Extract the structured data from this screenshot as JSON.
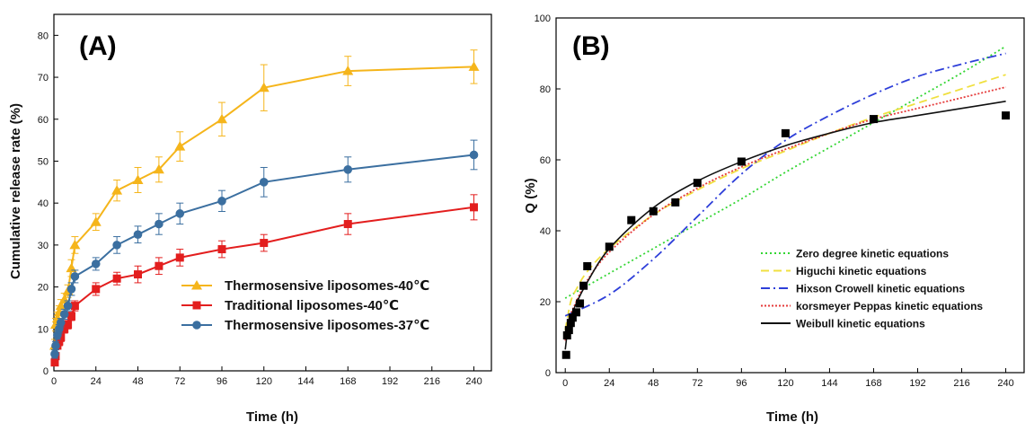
{
  "chart_data": [
    {
      "type": "line",
      "panel_label": "(A)",
      "xlabel": "Time (h)",
      "ylabel": "Cumulative release rate (%)",
      "xlim": [
        0,
        250
      ],
      "ylim": [
        0,
        85
      ],
      "xticks": [
        0,
        24,
        48,
        72,
        96,
        120,
        144,
        168,
        192,
        216,
        240
      ],
      "yticks": [
        0,
        10,
        20,
        30,
        40,
        50,
        60,
        70,
        80
      ],
      "grid": false,
      "legend_position": "bottom-right",
      "series": [
        {
          "name": "Thermosensive liposomes-40℃",
          "color": "#f5b51b",
          "marker": "triangle",
          "x": [
            0.5,
            1,
            2,
            3,
            4,
            6,
            8,
            10,
            12,
            24,
            36,
            48,
            60,
            72,
            96,
            120,
            168,
            240
          ],
          "y": [
            6,
            11,
            12.5,
            14,
            15.5,
            17,
            19,
            24.5,
            30,
            35.5,
            43,
            45.5,
            48,
            53.5,
            60,
            67.5,
            71.5,
            72.5
          ],
          "err": [
            1.5,
            1.5,
            1.5,
            1.5,
            1.5,
            1.5,
            1.5,
            2,
            2,
            2,
            2.5,
            3,
            3,
            3.5,
            4,
            5.5,
            3.5,
            4
          ]
        },
        {
          "name": "Traditional liposomes-40℃",
          "color": "#e31e1e",
          "marker": "square",
          "x": [
            0.5,
            1,
            2,
            3,
            4,
            6,
            8,
            10,
            12,
            24,
            36,
            48,
            60,
            72,
            96,
            120,
            168,
            240
          ],
          "y": [
            2,
            3.5,
            6,
            7,
            8,
            10,
            11,
            13,
            15.5,
            19.5,
            22,
            23,
            25,
            27,
            29,
            30.5,
            35,
            39
          ],
          "err": [
            0.8,
            0.8,
            0.8,
            1,
            1,
            1,
            1,
            1,
            1.2,
            1.5,
            1.5,
            2,
            2,
            2,
            2,
            2,
            2.5,
            3
          ]
        },
        {
          "name": "Thermosensive liposomes-37℃",
          "color": "#3b6fa0",
          "marker": "circle",
          "x": [
            0.5,
            1,
            2,
            3,
            4,
            6,
            8,
            10,
            12,
            24,
            36,
            48,
            60,
            72,
            96,
            120,
            168,
            240
          ],
          "y": [
            4,
            6,
            8.5,
            10,
            11.5,
            13.5,
            15.5,
            19.5,
            22.5,
            25.5,
            30,
            32.5,
            35,
            37.5,
            40.5,
            45,
            48,
            51.5
          ],
          "err": [
            1,
            1,
            1,
            1,
            1,
            1.2,
            1.2,
            1.5,
            1.5,
            1.5,
            2,
            2,
            2.5,
            2.5,
            2.5,
            3.5,
            3,
            3.5
          ]
        }
      ]
    },
    {
      "type": "scatter",
      "panel_label": "(B)",
      "xlabel": "Time (h)",
      "ylabel": "Q (%)",
      "xlim": [
        -5,
        250
      ],
      "ylim": [
        0,
        100
      ],
      "xticks": [
        0,
        24,
        48,
        72,
        96,
        120,
        144,
        168,
        192,
        216,
        240
      ],
      "yticks": [
        0,
        20,
        40,
        60,
        80,
        100
      ],
      "grid": false,
      "legend_position": "bottom-right",
      "points": {
        "color": "#000000",
        "marker": "square",
        "x": [
          0.5,
          1,
          2,
          3,
          4,
          6,
          8,
          10,
          12,
          24,
          36,
          48,
          60,
          72,
          96,
          120,
          168,
          240
        ],
        "y": [
          5,
          10.5,
          12,
          14,
          15.5,
          17,
          19.5,
          24.5,
          30,
          35.5,
          43,
          45.5,
          48,
          53.5,
          59.5,
          67.5,
          71.5,
          72.5
        ]
      },
      "series": [
        {
          "name": "Zero degree kinetic equations",
          "color": "#33d633",
          "style": "dotted",
          "x": [
            0,
            24,
            48,
            72,
            96,
            120,
            144,
            168,
            192,
            216,
            240
          ],
          "y": [
            21,
            28,
            35,
            42,
            49,
            56.5,
            63.5,
            70.5,
            77.5,
            84.5,
            92
          ]
        },
        {
          "name": "Higuchi kinetic equations",
          "color": "#f0e040",
          "style": "dashed",
          "x": [
            0,
            3,
            6,
            12,
            24,
            48,
            72,
            96,
            120,
            144,
            168,
            192,
            216,
            240
          ],
          "y": [
            12,
            20,
            23.5,
            28.5,
            35,
            44.5,
            51.5,
            57.5,
            62.5,
            67.5,
            72,
            76,
            80,
            84
          ]
        },
        {
          "name": "Hixson Crowell kinetic equations",
          "color": "#2e3fd9",
          "style": "dashdot",
          "x": [
            0,
            24,
            48,
            72,
            96,
            120,
            144,
            168,
            192,
            216,
            240
          ],
          "y": [
            16,
            22,
            32,
            44,
            56,
            65.5,
            72.5,
            78.5,
            83.5,
            87,
            90
          ]
        },
        {
          "name": "korsmeyer Peppas kinetic equations",
          "color": "#e53b3b",
          "style": "short-dot",
          "x": [
            0,
            2,
            6,
            12,
            24,
            48,
            72,
            96,
            120,
            144,
            168,
            192,
            216,
            240
          ],
          "y": [
            9,
            15,
            20,
            26,
            34,
            44.5,
            52,
            58,
            63,
            67.5,
            71.5,
            74.5,
            77.5,
            80.5
          ]
        },
        {
          "name": "Weibull kinetic equations",
          "color": "#111111",
          "style": "solid",
          "x": [
            0,
            2,
            6,
            12,
            24,
            48,
            72,
            96,
            120,
            144,
            168,
            192,
            216,
            240
          ],
          "y": [
            6.5,
            14,
            19.5,
            25.5,
            35,
            46.5,
            54,
            59.5,
            64,
            67.5,
            70.5,
            72.5,
            74.5,
            76.5
          ]
        }
      ]
    }
  ]
}
